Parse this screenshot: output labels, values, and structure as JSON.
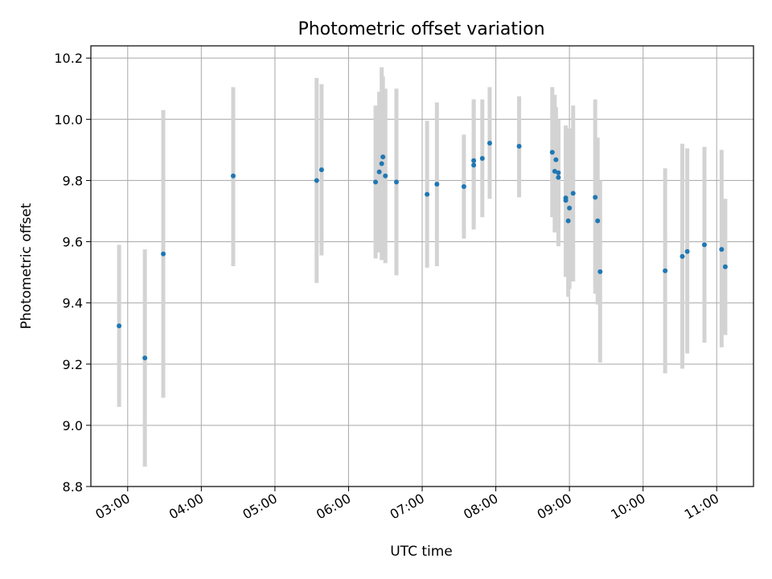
{
  "chart_data": {
    "type": "scatter",
    "title": "Photometric offset variation",
    "xlabel": "UTC time",
    "ylabel": "Photometric offset",
    "xlim": [
      "02:30",
      "11:30"
    ],
    "ylim": [
      8.8,
      10.24
    ],
    "xticks": [
      "03:00",
      "04:00",
      "05:00",
      "06:00",
      "07:00",
      "08:00",
      "09:00",
      "10:00",
      "11:00"
    ],
    "yticks": [
      "8.8",
      "9.0",
      "9.2",
      "9.4",
      "9.6",
      "9.8",
      "10.0",
      "10.2"
    ],
    "grid": true,
    "colors": {
      "point": "#1f77b4",
      "errorbar": "#d3d3d3"
    },
    "points": [
      {
        "t": "02:53",
        "y": 9.325,
        "lo": 9.06,
        "hi": 9.59
      },
      {
        "t": "03:14",
        "y": 9.22,
        "lo": 8.865,
        "hi": 9.575
      },
      {
        "t": "03:29",
        "y": 9.56,
        "lo": 9.09,
        "hi": 10.03
      },
      {
        "t": "04:26",
        "y": 9.815,
        "lo": 9.52,
        "hi": 10.105
      },
      {
        "t": "05:34",
        "y": 9.8,
        "lo": 9.465,
        "hi": 10.135
      },
      {
        "t": "05:38",
        "y": 9.835,
        "lo": 9.555,
        "hi": 10.115
      },
      {
        "t": "06:22",
        "y": 9.795,
        "lo": 9.545,
        "hi": 10.045
      },
      {
        "t": "06:25",
        "y": 9.828,
        "lo": 9.565,
        "hi": 10.09
      },
      {
        "t": "06:27",
        "y": 9.855,
        "lo": 9.54,
        "hi": 10.17
      },
      {
        "t": "06:28",
        "y": 9.877,
        "lo": 9.585,
        "hi": 10.14
      },
      {
        "t": "06:30",
        "y": 9.815,
        "lo": 9.53,
        "hi": 10.1
      },
      {
        "t": "06:39",
        "y": 9.795,
        "lo": 9.49,
        "hi": 10.1
      },
      {
        "t": "07:04",
        "y": 9.755,
        "lo": 9.515,
        "hi": 9.995
      },
      {
        "t": "07:12",
        "y": 9.788,
        "lo": 9.52,
        "hi": 10.055
      },
      {
        "t": "07:34",
        "y": 9.78,
        "lo": 9.61,
        "hi": 9.95
      },
      {
        "t": "07:42",
        "y": 9.85,
        "lo": 9.64,
        "hi": 10.065
      },
      {
        "t": "07:42",
        "y": 9.865,
        "lo": 9.66,
        "hi": 10.065
      },
      {
        "t": "07:49",
        "y": 9.872,
        "lo": 9.68,
        "hi": 10.065
      },
      {
        "t": "07:55",
        "y": 9.922,
        "lo": 9.74,
        "hi": 10.105
      },
      {
        "t": "08:19",
        "y": 9.912,
        "lo": 9.745,
        "hi": 10.075
      },
      {
        "t": "08:46",
        "y": 9.892,
        "lo": 9.68,
        "hi": 10.105
      },
      {
        "t": "08:48",
        "y": 9.83,
        "lo": 9.63,
        "hi": 10.08
      },
      {
        "t": "08:49",
        "y": 9.868,
        "lo": 9.64,
        "hi": 10.04
      },
      {
        "t": "08:51",
        "y": 9.81,
        "lo": 9.585,
        "hi": 10.0
      },
      {
        "t": "08:51",
        "y": 9.825,
        "lo": 9.64,
        "hi": 9.99
      },
      {
        "t": "08:57",
        "y": 9.743,
        "lo": 9.485,
        "hi": 9.95
      },
      {
        "t": "08:57",
        "y": 9.735,
        "lo": 9.49,
        "hi": 9.98
      },
      {
        "t": "08:59",
        "y": 9.668,
        "lo": 9.42,
        "hi": 9.97
      },
      {
        "t": "09:00",
        "y": 9.71,
        "lo": 9.445,
        "hi": 9.97
      },
      {
        "t": "09:03",
        "y": 9.758,
        "lo": 9.47,
        "hi": 10.045
      },
      {
        "t": "09:21",
        "y": 9.745,
        "lo": 9.43,
        "hi": 10.065
      },
      {
        "t": "09:23",
        "y": 9.668,
        "lo": 9.395,
        "hi": 9.94
      },
      {
        "t": "09:25",
        "y": 9.502,
        "lo": 9.205,
        "hi": 9.8
      },
      {
        "t": "10:18",
        "y": 9.505,
        "lo": 9.17,
        "hi": 9.84
      },
      {
        "t": "10:32",
        "y": 9.552,
        "lo": 9.185,
        "hi": 9.92
      },
      {
        "t": "10:36",
        "y": 9.568,
        "lo": 9.235,
        "hi": 9.905
      },
      {
        "t": "10:50",
        "y": 9.59,
        "lo": 9.27,
        "hi": 9.91
      },
      {
        "t": "11:04",
        "y": 9.575,
        "lo": 9.255,
        "hi": 9.9
      },
      {
        "t": "11:07",
        "y": 9.518,
        "lo": 9.295,
        "hi": 9.74
      }
    ]
  }
}
